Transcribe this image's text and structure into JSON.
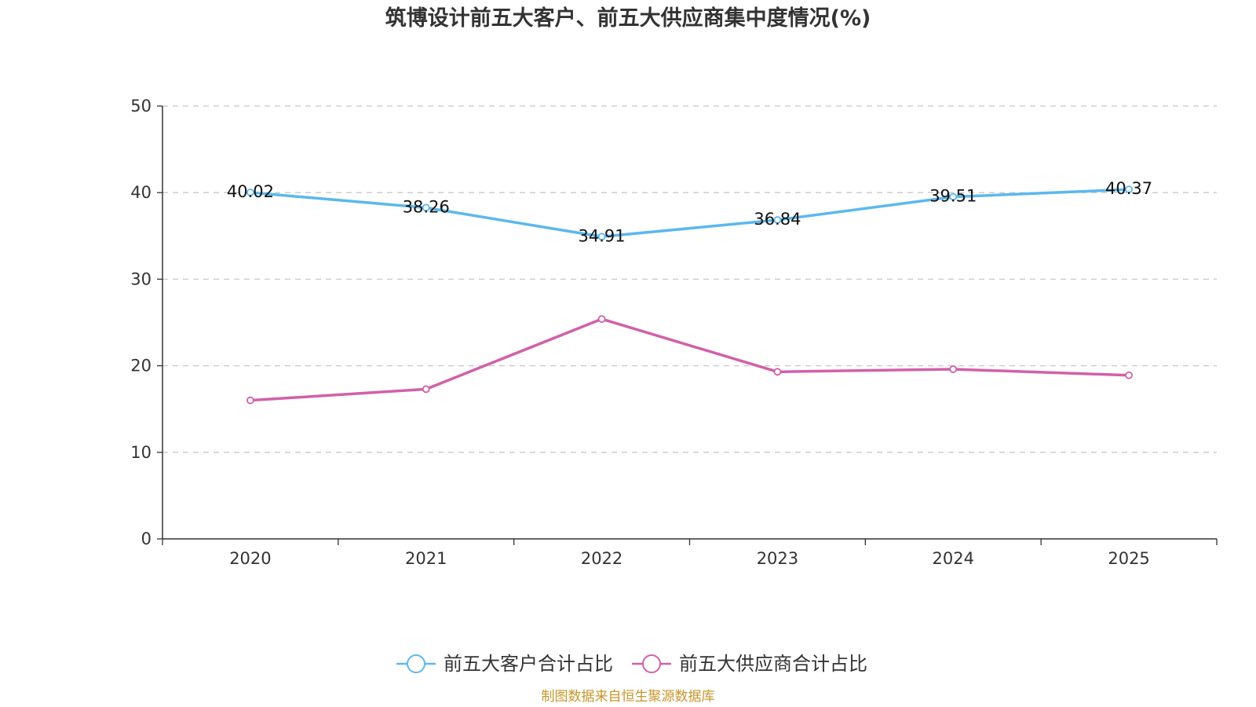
{
  "chart_data": {
    "type": "line",
    "title": "筑博设计前五大客户、前五大供应商集中度情况(%)",
    "xlabel": "",
    "ylabel": "",
    "categories": [
      "2020",
      "2021",
      "2022",
      "2023",
      "2024",
      "2025"
    ],
    "ylim": [
      0,
      50
    ],
    "yticks": [
      0,
      10,
      20,
      30,
      40,
      50
    ],
    "grid": "horizontal-dashed",
    "legend_position": "bottom-center",
    "series": [
      {
        "name": "前五大客户合计占比",
        "color": "#5bb8ee",
        "values": [
          40.02,
          38.26,
          34.91,
          36.84,
          39.51,
          40.37
        ],
        "labels": [
          "40.02",
          "38.26",
          "34.91",
          "36.84",
          "39.51",
          "40.37"
        ]
      },
      {
        "name": "前五大供应商合计占比",
        "color": "#d260a8",
        "values": [
          16.0,
          17.3,
          25.4,
          19.3,
          19.6,
          18.9
        ]
      }
    ],
    "source": "制图数据来自恒生聚源数据库",
    "source_color": "#c8962a"
  }
}
